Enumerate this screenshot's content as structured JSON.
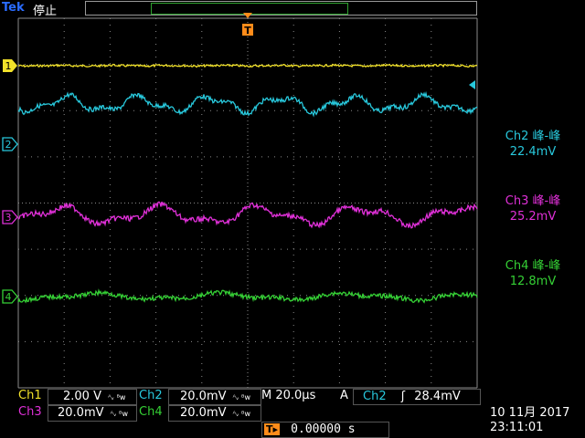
{
  "header": {
    "brand": "Tek",
    "run_state": "停止"
  },
  "trigger_marker_label": "T",
  "channels": [
    {
      "id": "1",
      "marker": "1",
      "color": "#f2e22a"
    },
    {
      "id": "2",
      "marker": "2",
      "color": "#28c8dc"
    },
    {
      "id": "3",
      "marker": "3",
      "color": "#e030d8"
    },
    {
      "id": "4",
      "marker": "4",
      "color": "#35d035"
    }
  ],
  "measurements": [
    {
      "title": "Ch2 峰-峰",
      "value": "22.4mV",
      "color": "#28c8dc"
    },
    {
      "title": "Ch3 峰-峰",
      "value": "25.2mV",
      "color": "#e030d8"
    },
    {
      "title": "Ch4 峰-峰",
      "value": "12.8mV",
      "color": "#35d035"
    }
  ],
  "bottom_panel": {
    "ch1_label": "Ch1",
    "ch1_scale": "2.00 V",
    "ch2_label": "Ch2",
    "ch2_scale": "20.0mV",
    "bw_symbol": "ᴬᵥ ᴮw",
    "timebase": "M 20.0µs",
    "trigger_mode": "A",
    "trigger_source": "Ch2",
    "trigger_slope": "ʃ",
    "trigger_level": "28.4mV",
    "ch3_label": "Ch3",
    "ch3_scale": "20.0mV",
    "ch4_label": "Ch4",
    "ch4_scale": "20.0mV",
    "position_icon": "T▸",
    "position_value": "0.00000 s",
    "date": "10 11月 2017",
    "time": "23:11:01"
  },
  "colors": {
    "ch1": "#f2e22a",
    "ch2": "#28c8dc",
    "ch3": "#e030d8",
    "ch4": "#35d035",
    "trigger": "#ff8c1a",
    "grid": "#8a8a8a"
  }
}
